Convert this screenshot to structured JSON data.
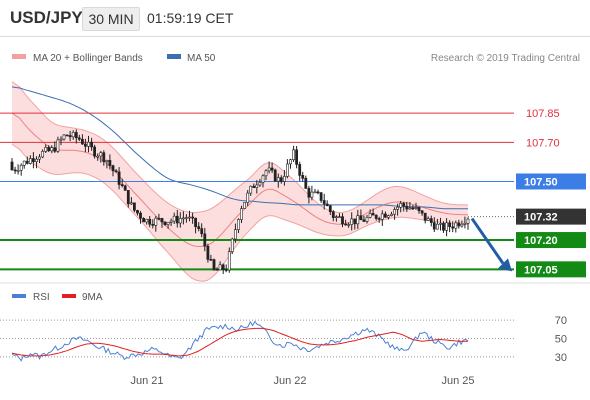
{
  "header": {
    "symbol": "USD/JPY",
    "timeframe": "30 MIN",
    "time": "01:59:19 CET"
  },
  "legend_main": {
    "bb": "MA 20 + Bollinger Bands",
    "ma50": "MA 50"
  },
  "watermark": "Research © 2019 Trading Central",
  "rsi_legend": {
    "rsi": "RSI",
    "ma9": "9MA"
  },
  "colors": {
    "bb_band": "#fbd3d3",
    "bb_line": "#f08080",
    "ma50": "#3c6fb0",
    "candle": "#222222",
    "resistance": "#e0303a",
    "pivot": "#3d7ee6",
    "support": "#138a13",
    "current": "#333333",
    "arrow": "#235da7",
    "rsi": "#4a7fd6",
    "rsi_ma": "#e02020"
  },
  "chart_data": [
    {
      "type": "candlestick",
      "title": "",
      "symbol": "USD/JPY",
      "interval": "30 MIN",
      "x_tick_labels": [
        "Jun 21",
        "Jun 22",
        "Jun 25"
      ],
      "ylim": [
        106.98,
        108.03
      ],
      "grid": false,
      "series": [
        {
          "name": "MA 20 + Bollinger Bands",
          "kind": "band"
        },
        {
          "name": "MA 50",
          "kind": "line"
        }
      ],
      "ma50": [
        107.99,
        107.97,
        107.95,
        107.93,
        107.91,
        107.88,
        107.84,
        107.79,
        107.73,
        107.66,
        107.6,
        107.54,
        107.5,
        107.49,
        107.47,
        107.45,
        107.42,
        107.4,
        107.4,
        107.39,
        107.39,
        107.38,
        107.38,
        107.38,
        107.38,
        107.38,
        107.38,
        107.38,
        107.38,
        107.37,
        107.37,
        107.37,
        107.36,
        107.36,
        107.36
      ],
      "bb_mid": [
        107.88,
        107.78,
        107.72,
        107.66,
        107.66,
        107.66,
        107.64,
        107.6,
        107.53,
        107.45,
        107.38,
        107.3,
        107.24,
        107.18,
        107.16,
        107.18,
        107.26,
        107.34,
        107.4,
        107.48,
        107.44,
        107.4,
        107.35,
        107.3,
        107.28,
        107.28,
        107.32,
        107.36,
        107.39,
        107.4,
        107.38,
        107.36,
        107.34,
        107.33,
        107.33
      ],
      "bb_width": [
        0.16,
        0.16,
        0.15,
        0.13,
        0.12,
        0.11,
        0.11,
        0.11,
        0.11,
        0.11,
        0.11,
        0.12,
        0.13,
        0.16,
        0.18,
        0.18,
        0.16,
        0.14,
        0.13,
        0.14,
        0.13,
        0.11,
        0.09,
        0.07,
        0.06,
        0.06,
        0.06,
        0.07,
        0.08,
        0.08,
        0.07,
        0.06,
        0.05,
        0.05,
        0.05
      ],
      "close": [
        107.56,
        107.6,
        107.64,
        107.66,
        107.74,
        107.72,
        107.66,
        107.62,
        107.5,
        107.36,
        107.3,
        107.3,
        107.3,
        107.32,
        107.25,
        107.04,
        107.06,
        107.36,
        107.48,
        107.56,
        107.5,
        107.64,
        107.44,
        107.42,
        107.32,
        107.3,
        107.3,
        107.32,
        107.34,
        107.38,
        107.36,
        107.3,
        107.26,
        107.28,
        107.32
      ],
      "levels": [
        {
          "value": 107.85,
          "label": "107.85",
          "kind": "resistance"
        },
        {
          "value": 107.7,
          "label": "107.70",
          "kind": "resistance"
        },
        {
          "value": 107.5,
          "label": "107.50",
          "kind": "pivot"
        },
        {
          "value": 107.32,
          "label": "107.32",
          "kind": "current"
        },
        {
          "value": 107.2,
          "label": "107.20",
          "kind": "support"
        },
        {
          "value": 107.05,
          "label": "107.05",
          "kind": "support"
        }
      ],
      "arrow": {
        "from": 107.31,
        "to": 107.06,
        "direction": "down"
      }
    },
    {
      "type": "line",
      "title": "",
      "series": [
        {
          "name": "RSI",
          "values": [
            32,
            28,
            34,
            30,
            36,
            40,
            46,
            50,
            48,
            42,
            38,
            34,
            30,
            32,
            34,
            38,
            36,
            30,
            28,
            38,
            50,
            60,
            62,
            64,
            60,
            62,
            68,
            60,
            48,
            42,
            46,
            40,
            38,
            42,
            46,
            48,
            52,
            56,
            60,
            55,
            48,
            40,
            36,
            44,
            58,
            50,
            44,
            40,
            46,
            48
          ]
        },
        {
          "name": "9MA",
          "values": [
            34,
            32,
            31,
            31,
            32,
            34,
            37,
            41,
            44,
            45,
            44,
            42,
            39,
            36,
            34,
            33,
            33,
            32,
            31,
            32,
            36,
            42,
            48,
            54,
            58,
            60,
            61,
            61,
            59,
            55,
            51,
            47,
            44,
            43,
            43,
            44,
            46,
            48,
            51,
            53,
            55,
            57,
            54,
            49,
            47,
            48,
            49,
            48,
            47,
            47
          ]
        }
      ],
      "ylim": [
        20,
        80
      ],
      "y_ticks": [
        70,
        50,
        30
      ],
      "reference_lines": [
        70,
        50,
        30
      ]
    }
  ]
}
